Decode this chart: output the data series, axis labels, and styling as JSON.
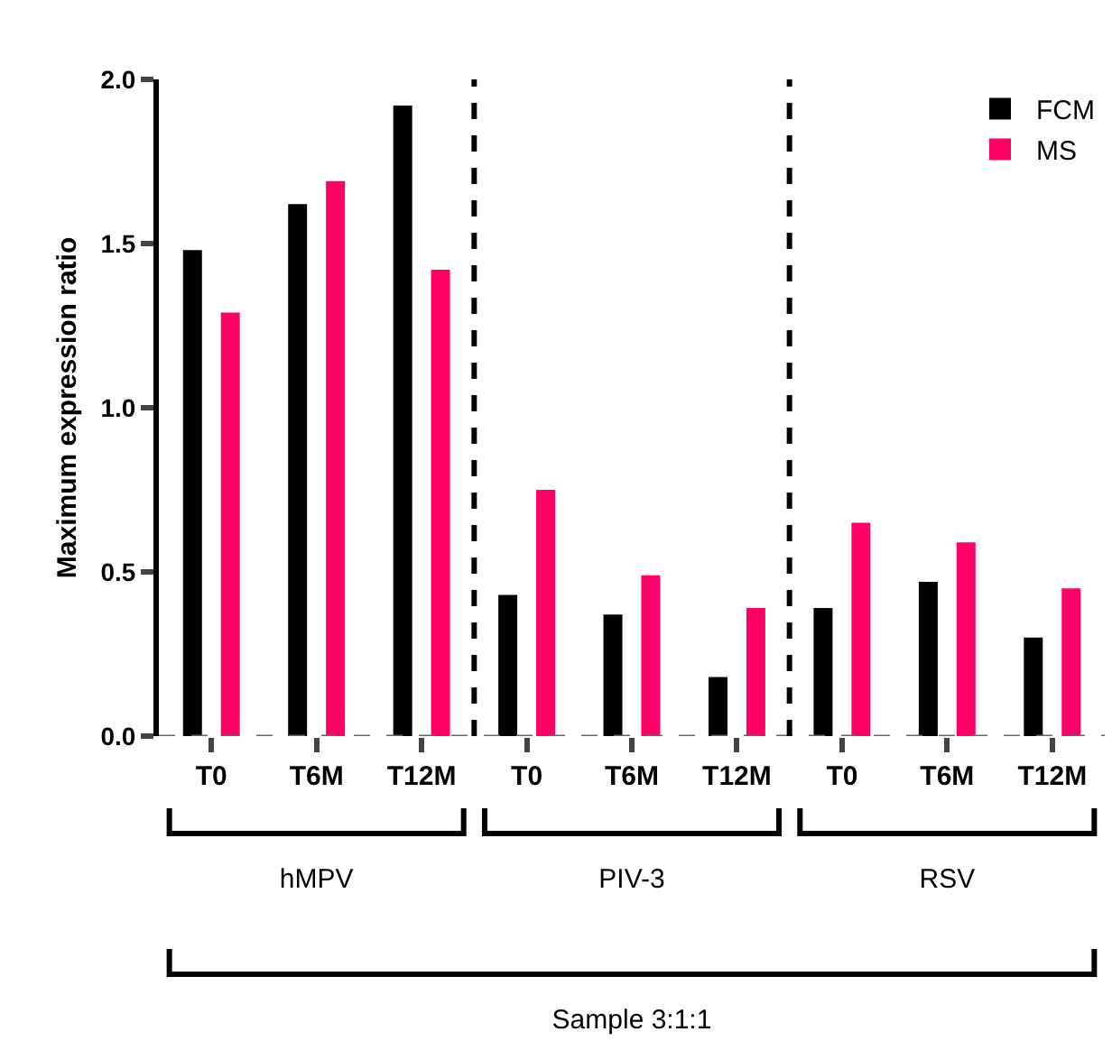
{
  "chart_data": {
    "type": "bar",
    "ylabel": "Maximum expression ratio",
    "categories": [
      "T0",
      "T6M",
      "T12M",
      "T0",
      "T6M",
      "T12M",
      "T0",
      "T6M",
      "T12M"
    ],
    "series": [
      {
        "name": "FCM",
        "color": "#000000",
        "values": [
          1.48,
          1.62,
          1.92,
          0.43,
          0.37,
          0.18,
          0.39,
          0.47,
          0.3
        ]
      },
      {
        "name": "MS",
        "color": "#ff0066",
        "values": [
          1.29,
          1.69,
          1.42,
          0.75,
          0.49,
          0.39,
          0.65,
          0.59,
          0.45
        ]
      }
    ],
    "ylim": [
      0,
      2
    ],
    "yticks": [
      {
        "value": 0,
        "label": "0.0"
      },
      {
        "value": 0.5,
        "label": "0.5"
      },
      {
        "value": 1,
        "label": "1.0"
      },
      {
        "value": 1.5,
        "label": "1.5"
      },
      {
        "value": 2,
        "label": "2.0"
      }
    ],
    "ref_lines": [
      {
        "axis": "y",
        "value": 0,
        "line_style": "dashed",
        "color": "#666666"
      }
    ],
    "annotations": [
      "hMPV",
      "PIV-3",
      "RSV",
      "Sample 3:1:1"
    ],
    "grid": false,
    "legend": "top right"
  }
}
